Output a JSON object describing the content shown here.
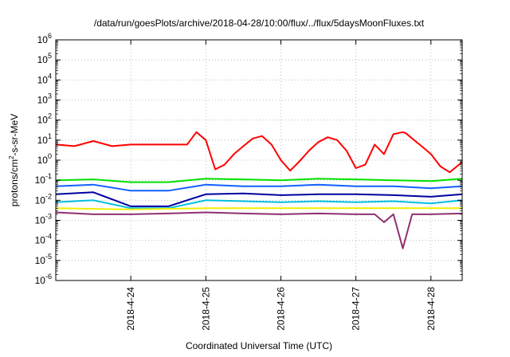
{
  "chart_data": {
    "type": "line",
    "title": "/data/run/goesPlots/archive/2018-04-28/10:00/flux/../flux/5daysMoonFluxes.txt",
    "xlabel": "Coordinated Universal Time (UTC)",
    "ylabel": {
      "pre": "protons/cm",
      "sup": "2",
      "post": "-s-sr-MeV"
    },
    "yscale": "log",
    "ylim_exponents": [
      -6,
      6
    ],
    "y_ticks": [
      {
        "base": "10",
        "exp": "-6"
      },
      {
        "base": "10",
        "exp": "-5"
      },
      {
        "base": "10",
        "exp": "-4"
      },
      {
        "base": "10",
        "exp": "-3"
      },
      {
        "base": "10",
        "exp": "-2"
      },
      {
        "base": "10",
        "exp": "-1"
      },
      {
        "base": "10",
        "exp": "0"
      },
      {
        "base": "10",
        "exp": "1"
      },
      {
        "base": "10",
        "exp": "2"
      },
      {
        "base": "10",
        "exp": "3"
      },
      {
        "base": "10",
        "exp": "4"
      },
      {
        "base": "10",
        "exp": "5"
      },
      {
        "base": "10",
        "exp": "6"
      }
    ],
    "xlim": [
      "2018-04-23 00:00",
      "2018-04-28 10:00"
    ],
    "x_ticks": [
      "2018-4-24",
      "2018-4-25",
      "2018-4-26",
      "2018-4-27",
      "2018-4-28"
    ],
    "grid": true,
    "colors": {
      "red": "#ff0000",
      "green": "#00e000",
      "blue": "#1060ff",
      "navy": "#0000a0",
      "cyan": "#00c0e0",
      "yellow": "#f0f000",
      "purple": "#903070"
    },
    "series": [
      {
        "color": "#ff0000",
        "x": [
          "2018-04-23 00:00",
          "2018-04-23 06:00",
          "2018-04-23 12:00",
          "2018-04-23 18:00",
          "2018-04-24 00:00",
          "2018-04-24 06:00",
          "2018-04-24 12:00",
          "2018-04-24 15:00",
          "2018-04-24 18:00",
          "2018-04-24 21:00",
          "2018-04-25 00:00",
          "2018-04-25 03:00",
          "2018-04-25 06:00",
          "2018-04-25 09:00",
          "2018-04-25 12:00",
          "2018-04-25 15:00",
          "2018-04-25 18:00",
          "2018-04-25 21:00",
          "2018-04-26 00:00",
          "2018-04-26 03:00",
          "2018-04-26 06:00",
          "2018-04-26 09:00",
          "2018-04-26 12:00",
          "2018-04-26 15:00",
          "2018-04-26 18:00",
          "2018-04-26 21:00",
          "2018-04-27 00:00",
          "2018-04-27 03:00",
          "2018-04-27 06:00",
          "2018-04-27 09:00",
          "2018-04-27 12:00",
          "2018-04-27 15:00",
          "2018-04-27 16:00",
          "2018-04-27 18:00",
          "2018-04-27 21:00",
          "2018-04-28 00:00",
          "2018-04-28 03:00",
          "2018-04-28 06:00",
          "2018-04-28 10:00"
        ],
        "y": [
          6,
          5,
          9,
          5,
          6,
          6,
          6,
          6,
          6,
          25,
          10,
          0.35,
          0.6,
          2,
          5,
          12,
          16,
          6,
          1,
          0.3,
          0.9,
          3,
          8,
          14,
          10,
          3,
          0.4,
          0.6,
          6,
          2,
          20,
          25,
          22,
          12,
          5,
          2,
          0.5,
          0.25,
          0.8
        ]
      },
      {
        "color": "#00e000",
        "x": [
          "2018-04-23 00:00",
          "2018-04-23 12:00",
          "2018-04-24 00:00",
          "2018-04-24 12:00",
          "2018-04-25 00:00",
          "2018-04-25 12:00",
          "2018-04-26 00:00",
          "2018-04-26 12:00",
          "2018-04-27 00:00",
          "2018-04-27 12:00",
          "2018-04-28 00:00",
          "2018-04-28 10:00"
        ],
        "y": [
          0.1,
          0.11,
          0.08,
          0.08,
          0.12,
          0.11,
          0.1,
          0.12,
          0.11,
          0.1,
          0.09,
          0.12
        ]
      },
      {
        "color": "#1060ff",
        "x": [
          "2018-04-23 00:00",
          "2018-04-23 12:00",
          "2018-04-24 00:00",
          "2018-04-24 12:00",
          "2018-04-25 00:00",
          "2018-04-25 12:00",
          "2018-04-26 00:00",
          "2018-04-26 12:00",
          "2018-04-27 00:00",
          "2018-04-27 12:00",
          "2018-04-28 00:00",
          "2018-04-28 10:00"
        ],
        "y": [
          0.05,
          0.06,
          0.03,
          0.03,
          0.06,
          0.05,
          0.05,
          0.06,
          0.05,
          0.05,
          0.04,
          0.05
        ]
      },
      {
        "color": "#0000a0",
        "x": [
          "2018-04-23 00:00",
          "2018-04-23 12:00",
          "2018-04-24 00:00",
          "2018-04-24 12:00",
          "2018-04-25 00:00",
          "2018-04-25 12:00",
          "2018-04-26 00:00",
          "2018-04-26 12:00",
          "2018-04-27 00:00",
          "2018-04-27 12:00",
          "2018-04-28 00:00",
          "2018-04-28 10:00"
        ],
        "y": [
          0.02,
          0.025,
          0.005,
          0.005,
          0.02,
          0.022,
          0.018,
          0.02,
          0.02,
          0.018,
          0.015,
          0.02
        ]
      },
      {
        "color": "#00c0e0",
        "x": [
          "2018-04-23 00:00",
          "2018-04-23 12:00",
          "2018-04-24 00:00",
          "2018-04-24 12:00",
          "2018-04-25 00:00",
          "2018-04-25 12:00",
          "2018-04-26 00:00",
          "2018-04-26 12:00",
          "2018-04-27 00:00",
          "2018-04-27 12:00",
          "2018-04-28 00:00",
          "2018-04-28 10:00"
        ],
        "y": [
          0.008,
          0.01,
          0.004,
          0.004,
          0.01,
          0.009,
          0.008,
          0.009,
          0.008,
          0.009,
          0.007,
          0.01
        ]
      },
      {
        "color": "#f0f000",
        "x": [
          "2018-04-23 00:00",
          "2018-04-24 00:00",
          "2018-04-25 00:00",
          "2018-04-26 00:00",
          "2018-04-27 00:00",
          "2018-04-28 00:00",
          "2018-04-28 10:00"
        ],
        "y": [
          0.004,
          0.0035,
          0.004,
          0.004,
          0.004,
          0.004,
          0.004
        ]
      },
      {
        "color": "#903070",
        "x": [
          "2018-04-23 00:00",
          "2018-04-23 12:00",
          "2018-04-24 00:00",
          "2018-04-24 12:00",
          "2018-04-25 00:00",
          "2018-04-25 12:00",
          "2018-04-26 00:00",
          "2018-04-26 12:00",
          "2018-04-27 00:00",
          "2018-04-27 06:00",
          "2018-04-27 09:00",
          "2018-04-27 12:00",
          "2018-04-27 15:00",
          "2018-04-27 18:00",
          "2018-04-28 00:00",
          "2018-04-28 10:00"
        ],
        "y": [
          0.0025,
          0.002,
          0.002,
          0.0022,
          0.0025,
          0.0022,
          0.002,
          0.0022,
          0.002,
          0.002,
          0.0008,
          0.002,
          4e-05,
          0.002,
          0.002,
          0.0022
        ]
      }
    ]
  }
}
